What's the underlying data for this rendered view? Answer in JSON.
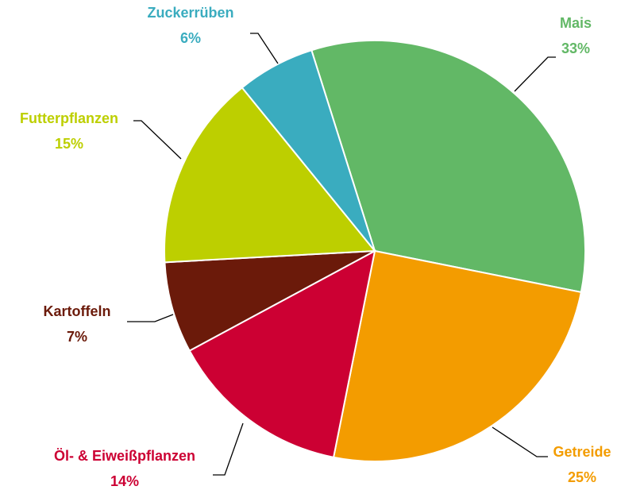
{
  "chart_data": {
    "type": "pie",
    "categories": [
      "Mais",
      "Getreide",
      "Öl- & Eiweißpflanzen",
      "Kartoffeln",
      "Futterpflanzen",
      "Zuckerrüben"
    ],
    "values": [
      33,
      25,
      14,
      7,
      15,
      6
    ],
    "value_labels": [
      "33%",
      "25%",
      "14%",
      "7%",
      "15%",
      "6%"
    ],
    "colors": [
      "#62b866",
      "#f39c00",
      "#cc0033",
      "#6b1a0a",
      "#bdcf00",
      "#3aacbf"
    ]
  }
}
